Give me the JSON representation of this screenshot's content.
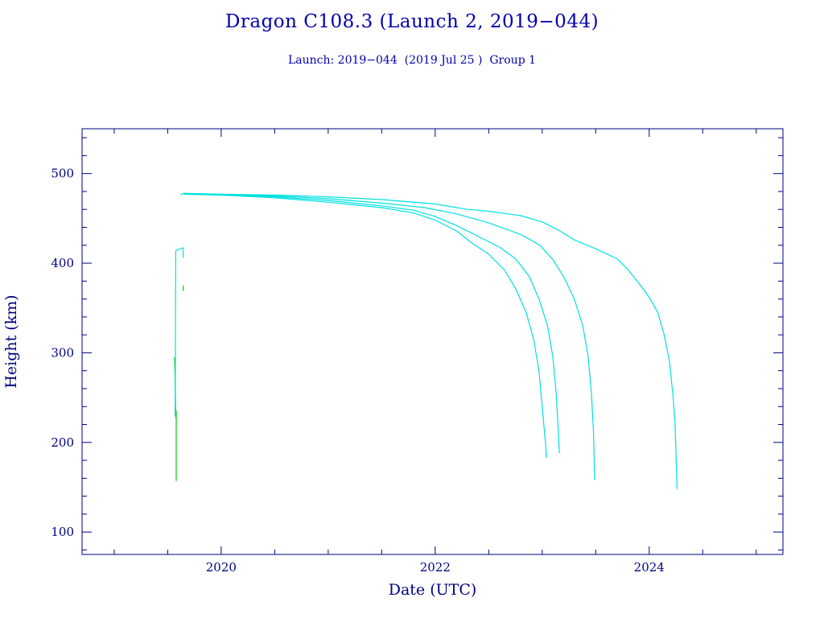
{
  "header": {
    "title": "Dragon C108.3 (Launch 2, 2019−044)",
    "subtitle": "Launch: 2019−044  (2019 Jul 25 )  Group 1"
  },
  "chart_data": {
    "type": "line",
    "title": "Dragon C108.3 (Launch 2, 2019−044)",
    "subtitle": "Launch: 2019−044  (2019 Jul 25 )  Group 1",
    "xlabel": "Date (UTC)",
    "ylabel": "Height (km)",
    "xlim": [
      2018.7,
      2025.25
    ],
    "ylim": [
      75,
      550
    ],
    "x_ticks": [
      2020,
      2022,
      2024
    ],
    "x_tick_labels": [
      "2020",
      "2022",
      "2024"
    ],
    "y_ticks": [
      100,
      200,
      300,
      400,
      500
    ],
    "y_tick_labels": [
      "100",
      "200",
      "300",
      "400",
      "500"
    ],
    "grid": false,
    "legend": "none",
    "colors": {
      "axes": "#000080",
      "title": "#0000b0",
      "cyan": "#00e0e0",
      "green": "#00cc00"
    },
    "series": [
      {
        "color": "#00cc00",
        "x": [
          2019.565,
          2019.57,
          2019.575,
          2019.58,
          2019.58
        ],
        "y": [
          295,
          270,
          228,
          235,
          157
        ]
      },
      {
        "color": "#00cc00",
        "x": [
          2019.645,
          2019.645
        ],
        "y": [
          375,
          369
        ]
      },
      {
        "color": "#00e0e0",
        "x": [
          2019.57,
          2019.575,
          2019.64,
          2019.645,
          2019.645
        ],
        "y": [
          230,
          414,
          417,
          417,
          406
        ]
      },
      {
        "color": "#00e0e0",
        "x": [
          2019.65,
          2019.72,
          2020.0,
          2020.5,
          2021.0,
          2021.5,
          2021.8,
          2022.0,
          2022.2,
          2022.35,
          2022.5,
          2022.65,
          2022.75,
          2022.85,
          2022.92,
          2022.97,
          2023.0,
          2023.03,
          2023.04
        ],
        "y": [
          477,
          477,
          476,
          473,
          468,
          462,
          456,
          448,
          436,
          422,
          410,
          392,
          372,
          345,
          315,
          280,
          240,
          200,
          183
        ]
      },
      {
        "color": "#00e0e0",
        "x": [
          2019.65,
          2020.0,
          2020.5,
          2021.0,
          2021.5,
          2021.8,
          2022.0,
          2022.2,
          2022.4,
          2022.6,
          2022.75,
          2022.88,
          2022.97,
          2023.05,
          2023.1,
          2023.13,
          2023.15,
          2023.16
        ],
        "y": [
          477,
          476,
          474,
          470,
          464,
          459,
          452,
          442,
          430,
          418,
          405,
          385,
          360,
          330,
          295,
          255,
          215,
          188
        ]
      },
      {
        "color": "#00e0e0",
        "x": [
          2019.65,
          2020.0,
          2020.5,
          2021.0,
          2021.5,
          2021.9,
          2022.2,
          2022.5,
          2022.8,
          2022.98,
          2023.1,
          2023.2,
          2023.3,
          2023.38,
          2023.43,
          2023.46,
          2023.48,
          2023.49
        ],
        "y": [
          477,
          476,
          475,
          472,
          467,
          462,
          455,
          445,
          432,
          420,
          404,
          385,
          360,
          330,
          295,
          255,
          210,
          158
        ]
      },
      {
        "color": "#00e0e0",
        "x": [
          2019.62,
          2019.65,
          2020.0,
          2020.5,
          2021.0,
          2021.5,
          2022.0,
          2022.3,
          2022.5,
          2022.8,
          2023.0,
          2023.15,
          2023.3,
          2023.5,
          2023.7,
          2023.8,
          2023.92,
          2024.0,
          2024.08,
          2024.14,
          2024.19,
          2024.22,
          2024.24,
          2024.25,
          2024.26
        ],
        "y": [
          476,
          478,
          477,
          476,
          474,
          471,
          466,
          460,
          458,
          453,
          446,
          437,
          426,
          416,
          405,
          393,
          375,
          362,
          345,
          320,
          290,
          255,
          225,
          190,
          148
        ]
      }
    ]
  }
}
